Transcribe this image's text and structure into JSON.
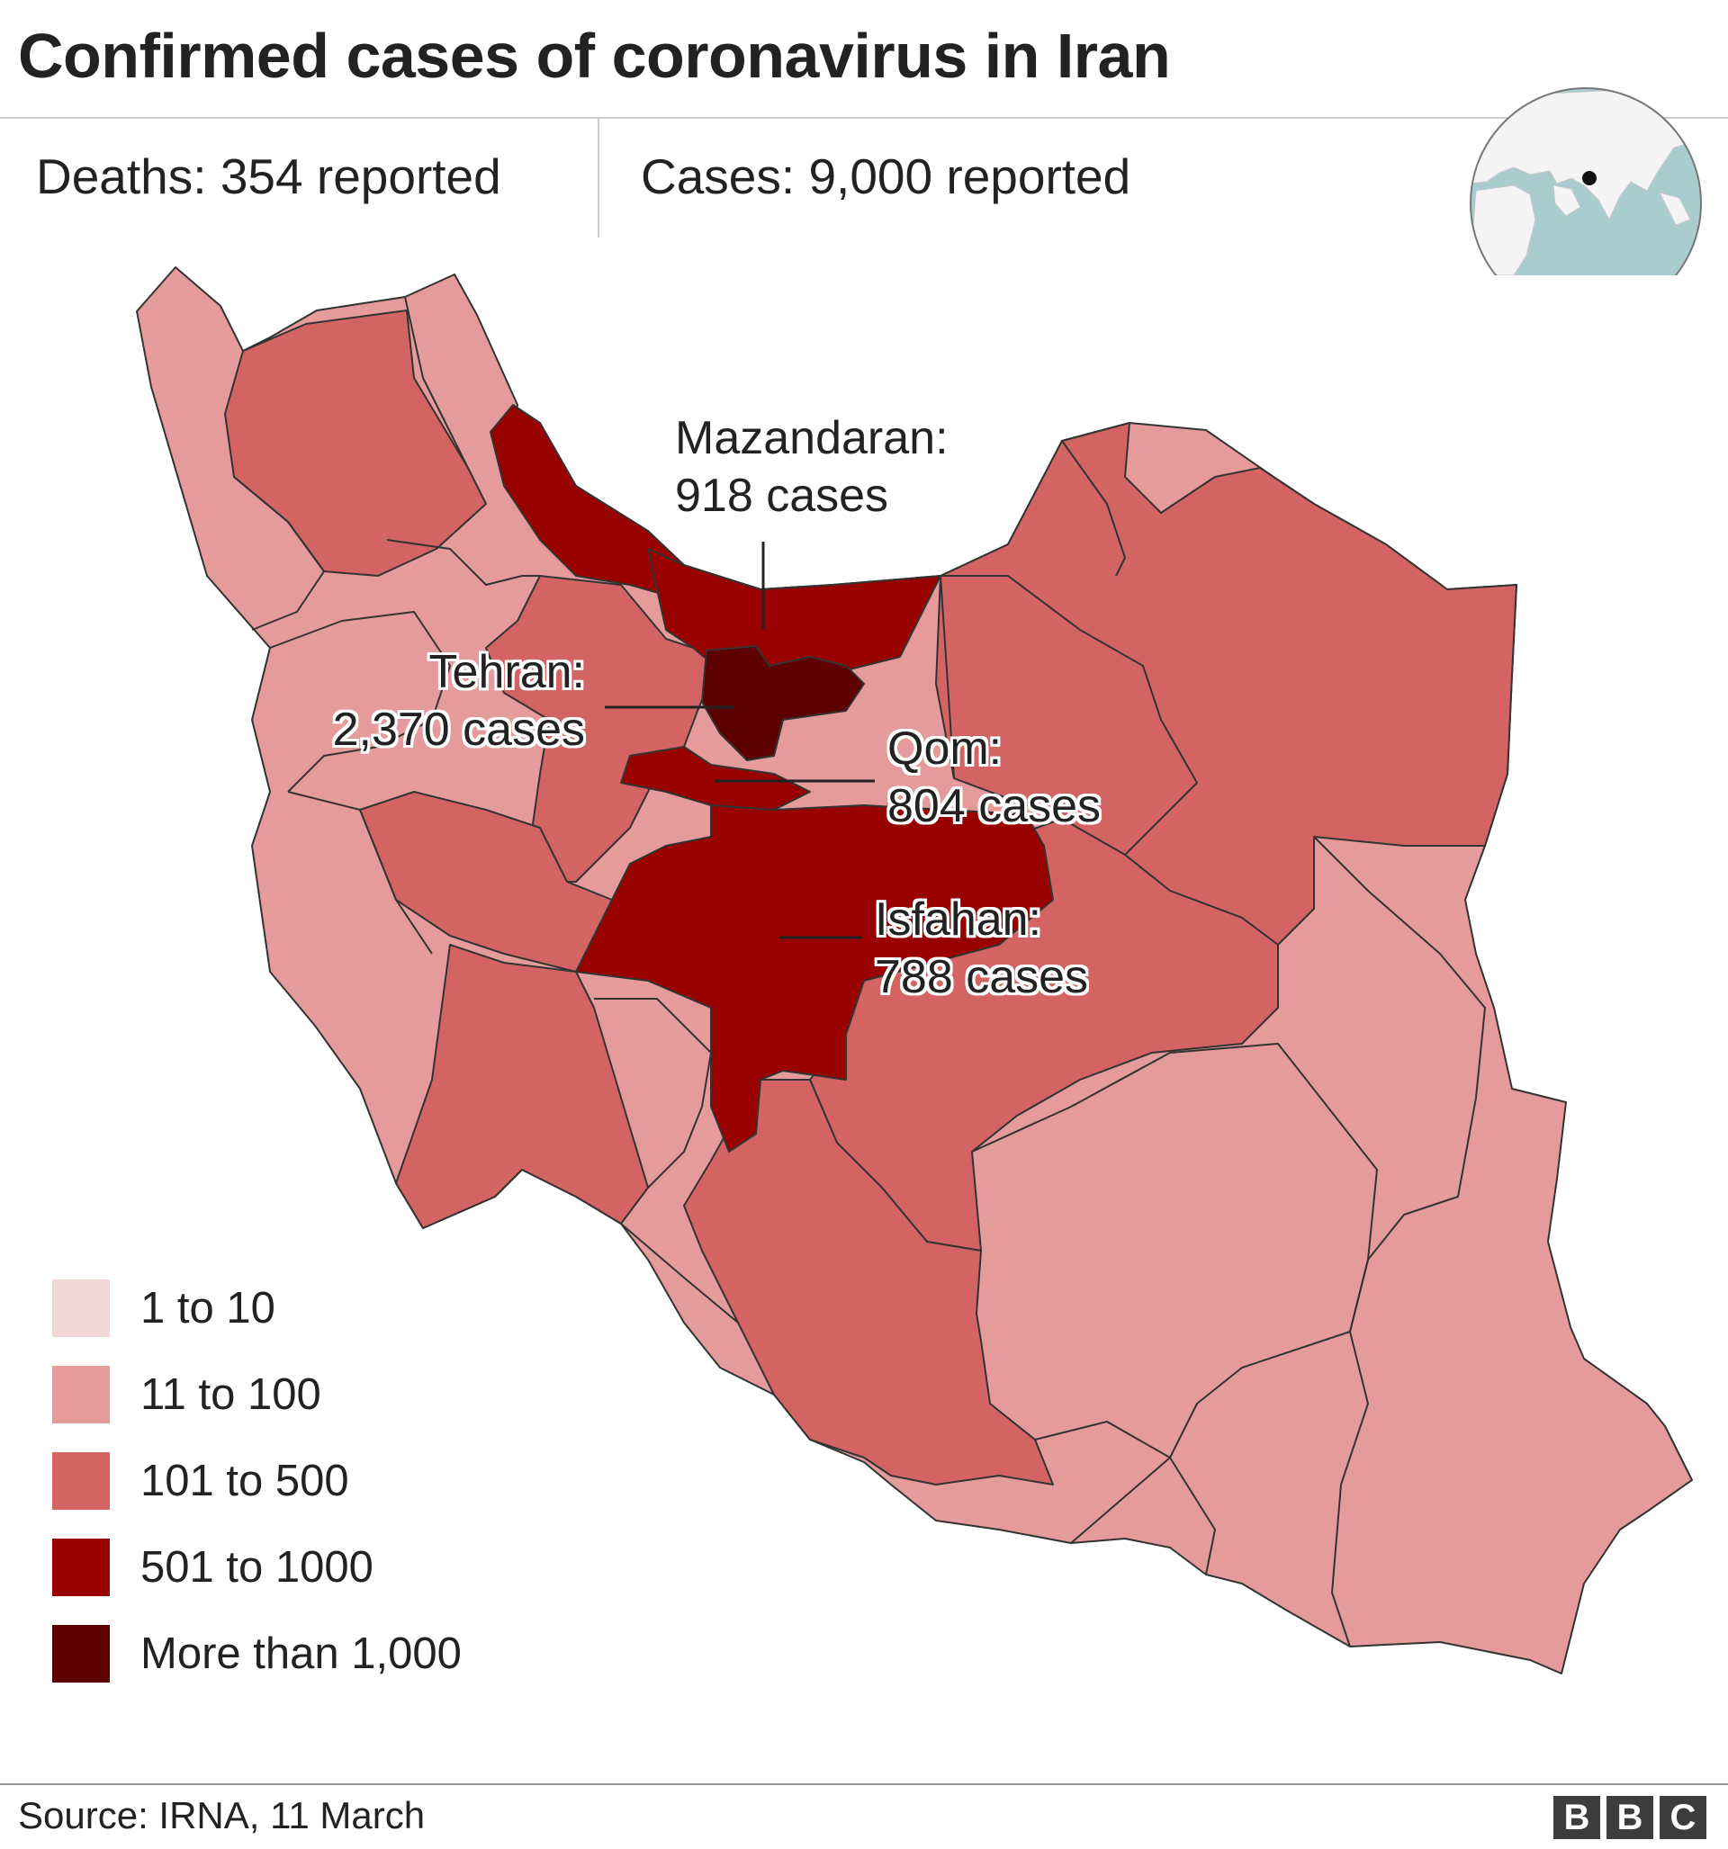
{
  "header": {
    "title": "Confirmed cases of coronavirus in Iran",
    "deaths": "Deaths: 354 reported",
    "cases": "Cases: 9,000 reported"
  },
  "colors": {
    "range_1_10": "#f0d8d8",
    "range_11_100": "#e59b9b",
    "range_101_500": "#d46464",
    "range_501_1000": "#990000",
    "range_more_1000": "#5c0000",
    "border": "#333333",
    "globe_ocean": "#a9cccf",
    "globe_land": "#f4f4f4"
  },
  "annotations": {
    "mazandaran": {
      "line1": "Mazandaran:",
      "line2": "918 cases"
    },
    "tehran": {
      "line1": "Tehran:",
      "line2": "2,370 cases"
    },
    "qom": {
      "line1": "Qom:",
      "line2": "804 cases"
    },
    "isfahan": {
      "line1": "Isfahan:",
      "line2": "788 cases"
    }
  },
  "legend": {
    "items": [
      {
        "label": "1 to 10",
        "color": "#f0d8d8"
      },
      {
        "label": "11 to 100",
        "color": "#e59b9b"
      },
      {
        "label": "101 to 500",
        "color": "#d46464"
      },
      {
        "label": "501 to 1000",
        "color": "#990000"
      },
      {
        "label": "More than 1,000",
        "color": "#5c0000"
      }
    ]
  },
  "footer": {
    "source": "Source: IRNA, 11 March",
    "logo_letters": [
      "B",
      "B",
      "C"
    ]
  },
  "icons": {
    "globe": "globe-locator-icon",
    "logo": "bbc-logo-icon"
  }
}
